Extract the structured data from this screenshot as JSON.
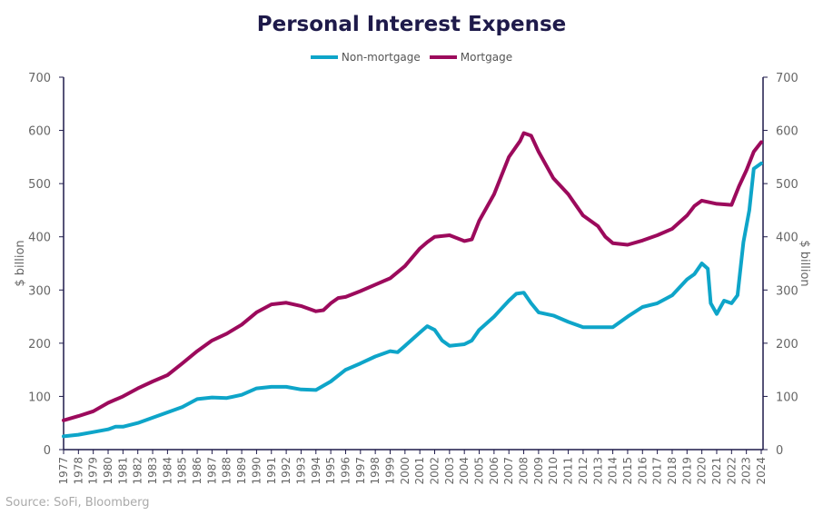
{
  "chart_data": {
    "type": "line",
    "title": "Personal Interest Expense",
    "ylabel": "$ billion",
    "ylabel_right": "$ billion",
    "ylim": [
      0,
      700
    ],
    "yticks": [
      0,
      100,
      200,
      300,
      400,
      500,
      600,
      700
    ],
    "xlim": [
      1977,
      2024
    ],
    "xticks": [
      1977,
      1978,
      1979,
      1980,
      1981,
      1982,
      1983,
      1984,
      1985,
      1986,
      1987,
      1988,
      1989,
      1990,
      1991,
      1992,
      1993,
      1994,
      1995,
      1996,
      1997,
      1998,
      1999,
      2000,
      2001,
      2002,
      2003,
      2004,
      2005,
      2006,
      2007,
      2008,
      2009,
      2010,
      2011,
      2012,
      2013,
      2014,
      2015,
      2016,
      2017,
      2018,
      2019,
      2020,
      2021,
      2022,
      2023,
      2024
    ],
    "legend_position": "top-center",
    "series": [
      {
        "name": "Non-mortgage",
        "color": "#0ea5c9",
        "points": [
          [
            1977,
            25
          ],
          [
            1978,
            28
          ],
          [
            1979,
            33
          ],
          [
            1980,
            38
          ],
          [
            1980.5,
            43
          ],
          [
            1981,
            43
          ],
          [
            1982,
            50
          ],
          [
            1983,
            60
          ],
          [
            1984,
            70
          ],
          [
            1985,
            80
          ],
          [
            1986,
            95
          ],
          [
            1987,
            98
          ],
          [
            1988,
            97
          ],
          [
            1989,
            103
          ],
          [
            1990,
            115
          ],
          [
            1991,
            118
          ],
          [
            1992,
            118
          ],
          [
            1993,
            113
          ],
          [
            1994,
            112
          ],
          [
            1995,
            128
          ],
          [
            1996,
            150
          ],
          [
            1997,
            162
          ],
          [
            1998,
            175
          ],
          [
            1999,
            185
          ],
          [
            1999.5,
            183
          ],
          [
            2000,
            195
          ],
          [
            2001,
            220
          ],
          [
            2001.5,
            232
          ],
          [
            2002,
            225
          ],
          [
            2002.5,
            205
          ],
          [
            2003,
            195
          ],
          [
            2004,
            198
          ],
          [
            2004.5,
            205
          ],
          [
            2005,
            225
          ],
          [
            2006,
            250
          ],
          [
            2006.5,
            265
          ],
          [
            2007,
            280
          ],
          [
            2007.5,
            293
          ],
          [
            2008,
            295
          ],
          [
            2008.5,
            275
          ],
          [
            2009,
            258
          ],
          [
            2010,
            252
          ],
          [
            2011,
            240
          ],
          [
            2012,
            230
          ],
          [
            2013,
            230
          ],
          [
            2014,
            230
          ],
          [
            2015,
            250
          ],
          [
            2016,
            268
          ],
          [
            2017,
            275
          ],
          [
            2018,
            290
          ],
          [
            2019,
            320
          ],
          [
            2019.5,
            330
          ],
          [
            2020,
            350
          ],
          [
            2020.4,
            340
          ],
          [
            2020.6,
            275
          ],
          [
            2021,
            255
          ],
          [
            2021.5,
            280
          ],
          [
            2022,
            275
          ],
          [
            2022.4,
            290
          ],
          [
            2022.8,
            390
          ],
          [
            2023.2,
            450
          ],
          [
            2023.5,
            528
          ],
          [
            2024,
            538
          ]
        ]
      },
      {
        "name": "Mortgage",
        "color": "#9c0a5c",
        "points": [
          [
            1977,
            55
          ],
          [
            1978,
            63
          ],
          [
            1979,
            72
          ],
          [
            1980,
            88
          ],
          [
            1981,
            100
          ],
          [
            1982,
            115
          ],
          [
            1983,
            128
          ],
          [
            1984,
            140
          ],
          [
            1985,
            162
          ],
          [
            1986,
            185
          ],
          [
            1987,
            205
          ],
          [
            1988,
            218
          ],
          [
            1989,
            235
          ],
          [
            1990,
            258
          ],
          [
            1991,
            273
          ],
          [
            1992,
            276
          ],
          [
            1993,
            270
          ],
          [
            1994,
            260
          ],
          [
            1994.5,
            262
          ],
          [
            1995,
            275
          ],
          [
            1995.5,
            285
          ],
          [
            1996,
            287
          ],
          [
            1997,
            298
          ],
          [
            1998,
            310
          ],
          [
            1999,
            322
          ],
          [
            2000,
            345
          ],
          [
            2001,
            378
          ],
          [
            2001.5,
            390
          ],
          [
            2002,
            400
          ],
          [
            2003,
            403
          ],
          [
            2004,
            392
          ],
          [
            2004.5,
            395
          ],
          [
            2005,
            430
          ],
          [
            2006,
            480
          ],
          [
            2007,
            550
          ],
          [
            2007.75,
            580
          ],
          [
            2008,
            595
          ],
          [
            2008.5,
            590
          ],
          [
            2009,
            560
          ],
          [
            2010,
            510
          ],
          [
            2011,
            480
          ],
          [
            2012,
            440
          ],
          [
            2013,
            420
          ],
          [
            2013.5,
            400
          ],
          [
            2014,
            388
          ],
          [
            2015,
            385
          ],
          [
            2016,
            393
          ],
          [
            2017,
            403
          ],
          [
            2018,
            415
          ],
          [
            2019,
            440
          ],
          [
            2019.5,
            458
          ],
          [
            2020,
            468
          ],
          [
            2021,
            462
          ],
          [
            2022,
            460
          ],
          [
            2022.5,
            495
          ],
          [
            2023,
            525
          ],
          [
            2023.5,
            560
          ],
          [
            2024,
            578
          ]
        ]
      }
    ]
  },
  "source": "Source: SoFi, Bloomberg"
}
